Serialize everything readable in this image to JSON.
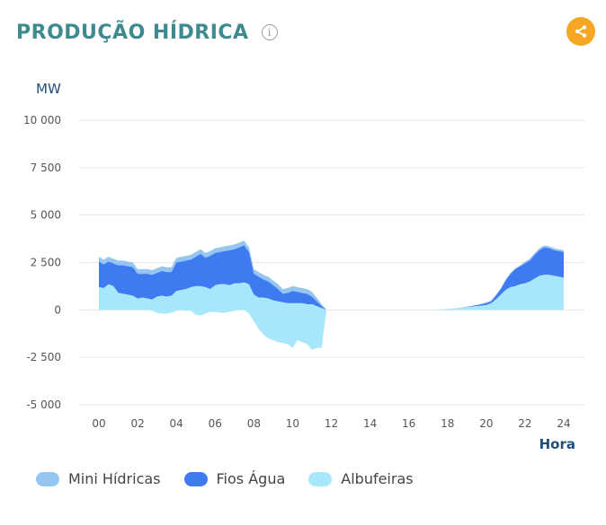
{
  "header": {
    "title": "PRODUÇÃO HÍDRICA",
    "info_icon": "info-icon",
    "share_icon": "share-icon"
  },
  "colors": {
    "title": "#3f8a8f",
    "share": "#f5a623",
    "mini": "#94c6f0",
    "fios": "#3f7bf0",
    "albufeiras": "#a7e6fb",
    "axis_text": "#555555",
    "axis_title": "#1f4f7a",
    "grid": "#e6e6e6"
  },
  "chart_data": {
    "type": "area",
    "stacked": true,
    "ylabel": "MW",
    "xlabel": "Hora",
    "ylim": [
      -5000,
      10000
    ],
    "xlim": [
      0,
      24
    ],
    "y_ticks": [
      -5000,
      -2500,
      0,
      2500,
      5000,
      7500,
      10000
    ],
    "y_tick_labels": [
      "-5 000",
      "-2 500",
      "0",
      "2 500",
      "5 000",
      "7 500",
      "10 000"
    ],
    "x_ticks": [
      0,
      2,
      4,
      6,
      8,
      10,
      12,
      14,
      16,
      18,
      20,
      22,
      24
    ],
    "x_tick_labels": [
      "00",
      "02",
      "04",
      "06",
      "08",
      "10",
      "12",
      "14",
      "16",
      "18",
      "20",
      "22",
      "24"
    ],
    "grid": true,
    "legend_position": "bottom-left",
    "x": [
      0,
      0.25,
      0.5,
      0.75,
      1,
      1.25,
      1.5,
      1.75,
      2,
      2.25,
      2.5,
      2.75,
      3,
      3.25,
      3.5,
      3.75,
      4,
      4.25,
      4.5,
      4.75,
      5,
      5.25,
      5.5,
      5.75,
      6,
      6.25,
      6.5,
      6.75,
      7,
      7.25,
      7.5,
      7.75,
      8,
      8.25,
      8.5,
      8.75,
      9,
      9.25,
      9.5,
      9.75,
      10,
      10.25,
      10.5,
      10.75,
      11,
      11.25,
      11.5,
      11.75,
      12,
      14,
      16,
      17,
      17.5,
      18,
      18.5,
      19,
      19.5,
      20,
      20.25,
      20.5,
      20.75,
      21,
      21.25,
      21.5,
      21.75,
      22,
      22.25,
      22.5,
      22.75,
      23,
      23.25,
      23.5,
      23.75,
      24
    ],
    "series": [
      {
        "name": "Albufeiras",
        "values": [
          1200,
          1150,
          1350,
          1250,
          900,
          850,
          800,
          750,
          600,
          650,
          600,
          550,
          700,
          750,
          700,
          750,
          1000,
          1050,
          1100,
          1200,
          1250,
          1250,
          1200,
          1100,
          1300,
          1350,
          1350,
          1300,
          1400,
          1400,
          1450,
          1350,
          800,
          650,
          650,
          600,
          500,
          450,
          400,
          350,
          350,
          350,
          350,
          300,
          300,
          200,
          100,
          0,
          0,
          0,
          0,
          0,
          20,
          50,
          100,
          150,
          200,
          250,
          350,
          550,
          800,
          1050,
          1200,
          1250,
          1350,
          1400,
          1500,
          1650,
          1800,
          1850,
          1850,
          1800,
          1750,
          1700
        ]
      },
      {
        "name": "Fios Água",
        "values": [
          1350,
          1250,
          1200,
          1200,
          1450,
          1500,
          1500,
          1500,
          1300,
          1250,
          1300,
          1300,
          1250,
          1300,
          1300,
          1250,
          1500,
          1500,
          1500,
          1450,
          1550,
          1700,
          1550,
          1750,
          1700,
          1700,
          1750,
          1850,
          1800,
          1900,
          1950,
          1700,
          1100,
          1100,
          950,
          900,
          800,
          650,
          450,
          550,
          650,
          600,
          550,
          550,
          400,
          250,
          100,
          0,
          0,
          0,
          0,
          0,
          0,
          0,
          0,
          20,
          50,
          100,
          100,
          200,
          300,
          500,
          700,
          900,
          950,
          1050,
          1100,
          1250,
          1350,
          1450,
          1400,
          1350,
          1350,
          1350
        ]
      },
      {
        "name": "Mini Hídricas",
        "values": [
          250,
          250,
          250,
          250,
          250,
          250,
          250,
          250,
          250,
          250,
          250,
          250,
          250,
          250,
          250,
          250,
          250,
          250,
          250,
          250,
          250,
          250,
          250,
          250,
          250,
          250,
          250,
          250,
          250,
          250,
          250,
          250,
          250,
          250,
          250,
          250,
          250,
          250,
          250,
          250,
          250,
          250,
          250,
          250,
          250,
          200,
          100,
          0,
          0,
          0,
          0,
          0,
          0,
          0,
          0,
          0,
          0,
          50,
          50,
          50,
          50,
          50,
          50,
          50,
          50,
          100,
          100,
          100,
          100,
          100,
          100,
          100,
          100,
          100
        ]
      }
    ],
    "albufeiras_pumping_values": [
      0,
      0,
      0,
      0,
      0,
      0,
      0,
      0,
      0,
      0,
      0,
      -50,
      -150,
      -200,
      -200,
      -150,
      -50,
      0,
      -50,
      -50,
      -250,
      -300,
      -200,
      -100,
      -100,
      -150,
      -150,
      -100,
      -50,
      0,
      0,
      -200,
      -600,
      -1000,
      -1300,
      -1500,
      -1600,
      -1700,
      -1750,
      -1800,
      -2000,
      -1600,
      -1700,
      -1800,
      -2100,
      -2000,
      -2000,
      0,
      0,
      0,
      0,
      0,
      0,
      0,
      0,
      0,
      0,
      0,
      0,
      0,
      0,
      0,
      0,
      0,
      0,
      0,
      0,
      0,
      0,
      0,
      0,
      0,
      0,
      0
    ]
  },
  "legend": {
    "items": [
      {
        "label": "Mini Hídricas",
        "color": "#94c6f0"
      },
      {
        "label": "Fios Água",
        "color": "#3f7bf0"
      },
      {
        "label": "Albufeiras",
        "color": "#a7e6fb"
      }
    ]
  }
}
